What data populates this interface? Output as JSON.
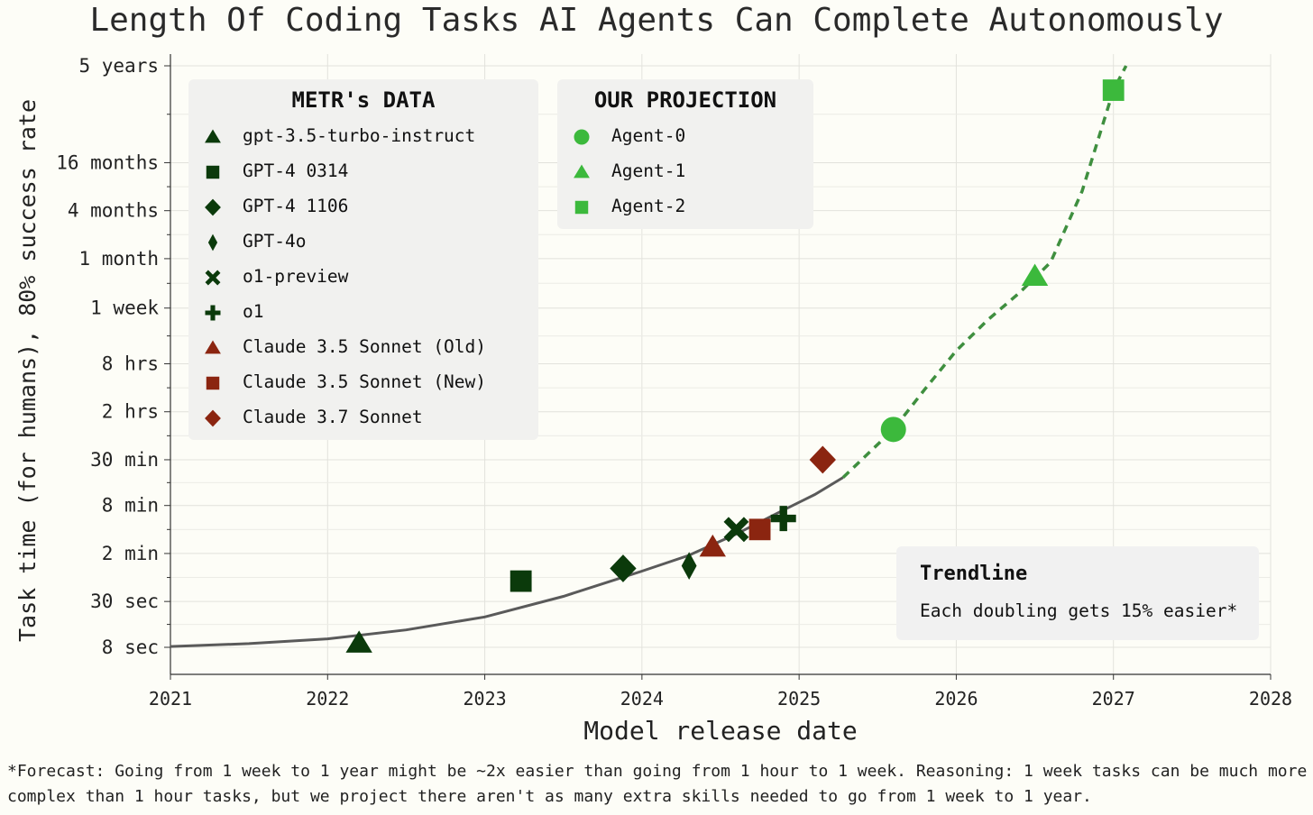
{
  "title": "Length Of Coding Tasks AI Agents Can Complete Autonomously",
  "footnote": "*Forecast: Going from 1 week to 1 year might be ~2x easier than going from 1 hour to 1 week. Reasoning: 1 week tasks can be much more complex than 1 hour tasks, but we project there aren't as many extra skills needed to go from 1 week to 1 year.",
  "colors": {
    "metr_dark": "#0b3a0b",
    "claude_red": "#8b2510",
    "projection_green": "#3cb93c",
    "trend_gray": "#5a5a5a",
    "trend_dashed": "#3f8f3f"
  },
  "legend_metr": {
    "title": "METR's DATA",
    "items": [
      {
        "label": "gpt-3.5-turbo-instruct",
        "marker": "triangle",
        "color": "#0b3a0b"
      },
      {
        "label": "GPT-4 0314",
        "marker": "square",
        "color": "#0b3a0b"
      },
      {
        "label": "GPT-4 1106",
        "marker": "diamond",
        "color": "#0b3a0b"
      },
      {
        "label": "GPT-4o",
        "marker": "thin-diamond",
        "color": "#0b3a0b"
      },
      {
        "label": "o1-preview",
        "marker": "x",
        "color": "#0b3a0b"
      },
      {
        "label": "o1",
        "marker": "plus",
        "color": "#0b3a0b"
      },
      {
        "label": "Claude 3.5 Sonnet (Old)",
        "marker": "triangle",
        "color": "#8b2510"
      },
      {
        "label": "Claude 3.5 Sonnet (New)",
        "marker": "square",
        "color": "#8b2510"
      },
      {
        "label": "Claude 3.7 Sonnet",
        "marker": "diamond",
        "color": "#8b2510"
      }
    ]
  },
  "legend_projection": {
    "title": "OUR PROJECTION",
    "items": [
      {
        "label": "Agent-0",
        "marker": "circle",
        "color": "#3cb93c"
      },
      {
        "label": "Agent-1",
        "marker": "triangle",
        "color": "#3cb93c"
      },
      {
        "label": "Agent-2",
        "marker": "square",
        "color": "#3cb93c"
      }
    ]
  },
  "trendline_box": {
    "title": "Trendline",
    "text": "Each doubling gets 15% easier*"
  },
  "chart_data": {
    "type": "scatter",
    "title": "Length Of Coding Tasks AI Agents Can Complete Autonomously",
    "xlabel": "Model release date",
    "ylabel": "Task time (for humans), 80% success rate",
    "y_scale": "log",
    "y_unit": "minutes",
    "xlim": [
      2021,
      2028
    ],
    "ylim_minutes": [
      0.133,
      2628000
    ],
    "x_ticks": [
      2021,
      2022,
      2023,
      2024,
      2025,
      2026,
      2027,
      2028
    ],
    "y_ticks": [
      {
        "label": "8 sec",
        "minutes": 0.133
      },
      {
        "label": "30 sec",
        "minutes": 0.5
      },
      {
        "label": "2 min",
        "minutes": 2
      },
      {
        "label": "8 min",
        "minutes": 8
      },
      {
        "label": "30 min",
        "minutes": 30
      },
      {
        "label": "2 hrs",
        "minutes": 120
      },
      {
        "label": "8 hrs",
        "minutes": 480
      },
      {
        "label": "1 week",
        "minutes": 2400
      },
      {
        "label": "1 month",
        "minutes": 10000
      },
      {
        "label": "4 months",
        "minutes": 40000
      },
      {
        "label": "16 months",
        "minutes": 160000
      },
      {
        "label": "5 years",
        "minutes": 2628000
      }
    ],
    "grid": true,
    "legend": "top-left",
    "series": [
      {
        "name": "gpt-3.5-turbo-instruct",
        "x": 2022.2,
        "y_minutes": 0.15,
        "marker": "triangle",
        "color": "#0b3a0b"
      },
      {
        "name": "GPT-4 0314",
        "x": 2023.23,
        "y_minutes": 0.9,
        "marker": "square",
        "color": "#0b3a0b"
      },
      {
        "name": "GPT-4 1106",
        "x": 2023.88,
        "y_minutes": 1.3,
        "marker": "diamond",
        "color": "#0b3a0b"
      },
      {
        "name": "GPT-4o",
        "x": 2024.3,
        "y_minutes": 1.4,
        "marker": "thin-diamond",
        "color": "#0b3a0b"
      },
      {
        "name": "o1-preview",
        "x": 2024.6,
        "y_minutes": 4.0,
        "marker": "x",
        "color": "#0b3a0b"
      },
      {
        "name": "o1",
        "x": 2024.9,
        "y_minutes": 5.5,
        "marker": "plus",
        "color": "#0b3a0b"
      },
      {
        "name": "Claude 3.5 Sonnet (Old)",
        "x": 2024.45,
        "y_minutes": 2.4,
        "marker": "triangle",
        "color": "#8b2510"
      },
      {
        "name": "Claude 3.5 Sonnet (New)",
        "x": 2024.75,
        "y_minutes": 4.0,
        "marker": "square",
        "color": "#8b2510"
      },
      {
        "name": "Claude 3.7 Sonnet",
        "x": 2025.15,
        "y_minutes": 30,
        "marker": "diamond",
        "color": "#8b2510"
      },
      {
        "name": "Agent-0",
        "x": 2025.6,
        "y_minutes": 72,
        "marker": "circle",
        "color": "#3cb93c"
      },
      {
        "name": "Agent-1",
        "x": 2026.5,
        "y_minutes": 6000,
        "marker": "triangle",
        "color": "#3cb93c"
      },
      {
        "name": "Agent-2",
        "x": 2027.0,
        "y_minutes": 1300000,
        "marker": "square",
        "color": "#3cb93c"
      }
    ],
    "trendline": {
      "solid": [
        [
          2021.0,
          0.136
        ],
        [
          2021.5,
          0.148
        ],
        [
          2022.0,
          0.17
        ],
        [
          2022.5,
          0.22
        ],
        [
          2023.0,
          0.32
        ],
        [
          2023.5,
          0.58
        ],
        [
          2024.0,
          1.2
        ],
        [
          2024.3,
          1.9
        ],
        [
          2024.6,
          3.5
        ],
        [
          2024.9,
          7.0
        ],
        [
          2025.1,
          11
        ],
        [
          2025.28,
          18
        ]
      ],
      "dashed": [
        [
          2025.28,
          18
        ],
        [
          2025.6,
          72
        ],
        [
          2025.8,
          230
        ],
        [
          2026.0,
          700
        ],
        [
          2026.2,
          1700
        ],
        [
          2026.4,
          3700
        ],
        [
          2026.6,
          9000
        ],
        [
          2026.8,
          70000
        ],
        [
          2027.0,
          1300000
        ],
        [
          2027.08,
          2628000
        ]
      ]
    }
  }
}
